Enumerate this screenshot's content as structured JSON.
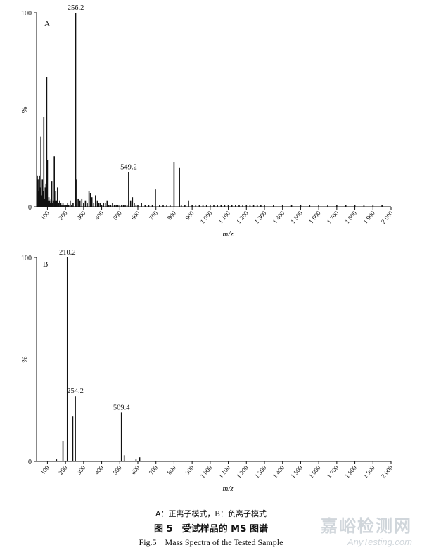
{
  "chart_data": [
    {
      "type": "bar",
      "panel_label": "A",
      "xlabel": "m/z",
      "ylabel": "%",
      "xlim": [
        40,
        2000
      ],
      "ylim": [
        0,
        100
      ],
      "y_ticks": [
        "0",
        "100"
      ],
      "x_ticks": [
        "100",
        "200",
        "300",
        "400",
        "500",
        "600",
        "700",
        "800",
        "900",
        "1 000",
        "1 100",
        "1 200",
        "1 300",
        "1 400",
        "1 500",
        "1 600",
        "1 700",
        "1 800",
        "1 900",
        "2 000"
      ],
      "annotations": [
        {
          "x": 256.2,
          "y": 100,
          "label": "256.2"
        },
        {
          "x": 549.2,
          "y": 18,
          "label": "549.2"
        }
      ],
      "peaks": {
        "x": [
          44,
          48,
          52,
          56,
          60,
          64,
          68,
          72,
          76,
          80,
          84,
          88,
          92,
          96,
          100,
          104,
          108,
          112,
          116,
          120,
          124,
          128,
          132,
          138,
          142,
          146,
          150,
          156,
          162,
          168,
          174,
          180,
          186,
          192,
          200,
          206,
          212,
          218,
          226,
          234,
          242,
          256,
          262,
          270,
          280,
          290,
          300,
          310,
          320,
          330,
          338,
          346,
          356,
          366,
          376,
          384,
          392,
          400,
          410,
          420,
          430,
          440,
          450,
          460,
          470,
          480,
          490,
          500,
          510,
          520,
          530,
          540,
          549,
          560,
          570,
          580,
          590,
          600,
          620,
          640,
          660,
          680,
          697,
          720,
          740,
          760,
          778,
          800,
          830,
          840,
          860,
          880,
          900,
          920,
          940,
          960,
          980,
          1000,
          1020,
          1040,
          1060,
          1080,
          1100,
          1120,
          1140,
          1160,
          1180,
          1200,
          1220,
          1240,
          1260,
          1280,
          1300,
          1350,
          1400,
          1450,
          1500,
          1550,
          1600,
          1650,
          1700,
          1750,
          1800,
          1850,
          1900,
          1950
        ],
        "y": [
          16,
          14,
          8,
          16,
          10,
          36,
          6,
          14,
          8,
          46,
          4,
          10,
          12,
          67,
          24,
          3,
          5,
          3,
          2,
          4,
          13,
          2,
          3,
          26,
          3,
          8,
          3,
          10,
          2,
          3,
          2,
          1,
          2,
          1,
          1,
          1,
          2,
          1,
          3,
          1,
          2,
          100,
          14,
          4,
          3,
          4,
          2,
          3,
          2,
          8,
          7,
          5,
          2,
          6,
          3,
          2,
          2,
          1,
          2,
          2,
          3,
          1,
          1,
          2,
          1,
          1,
          1,
          1,
          1,
          1,
          1,
          1,
          18,
          3,
          5,
          2,
          1,
          1,
          2,
          1,
          1,
          1,
          9,
          1,
          1,
          1,
          1,
          23,
          20,
          1,
          1,
          3,
          1,
          1,
          1,
          1,
          1,
          1,
          1,
          1,
          1,
          1,
          1,
          1,
          1,
          1,
          1,
          1,
          1,
          1,
          1,
          1,
          1,
          1,
          1,
          1,
          1,
          1,
          1,
          1,
          1,
          1,
          1,
          1,
          1,
          1
        ]
      }
    },
    {
      "type": "bar",
      "panel_label": "B",
      "xlabel": "m/z",
      "ylabel": "%",
      "xlim": [
        40,
        2000
      ],
      "ylim": [
        0,
        100
      ],
      "y_ticks": [
        "0",
        "100"
      ],
      "x_ticks": [
        "100",
        "200",
        "300",
        "400",
        "500",
        "600",
        "700",
        "800",
        "900",
        "1 000",
        "1 100",
        "1 200",
        "1 300",
        "1 400",
        "1 500",
        "1 600",
        "1 700",
        "1 800",
        "1 900",
        "2 000"
      ],
      "annotations": [
        {
          "x": 210.2,
          "y": 100,
          "label": "210.2"
        },
        {
          "x": 254.2,
          "y": 32,
          "label": "254.2"
        },
        {
          "x": 509.4,
          "y": 24,
          "label": "509.4"
        }
      ],
      "peaks": {
        "x": [
          150,
          186,
          210.2,
          240,
          254.2,
          509.4,
          525,
          590,
          610
        ],
        "y": [
          1,
          10,
          100,
          22,
          32,
          24,
          3,
          1,
          2
        ]
      }
    }
  ],
  "caption": {
    "line1": "A：正离子模式，B：负离子模式",
    "line2": "图 5　受试样品的 MS 图谱",
    "line3": "Fig.5　Mass Spectra of the Tested Sample"
  },
  "watermark": {
    "line1": "嘉峪检测网",
    "line2": "AnyTesting.com"
  }
}
